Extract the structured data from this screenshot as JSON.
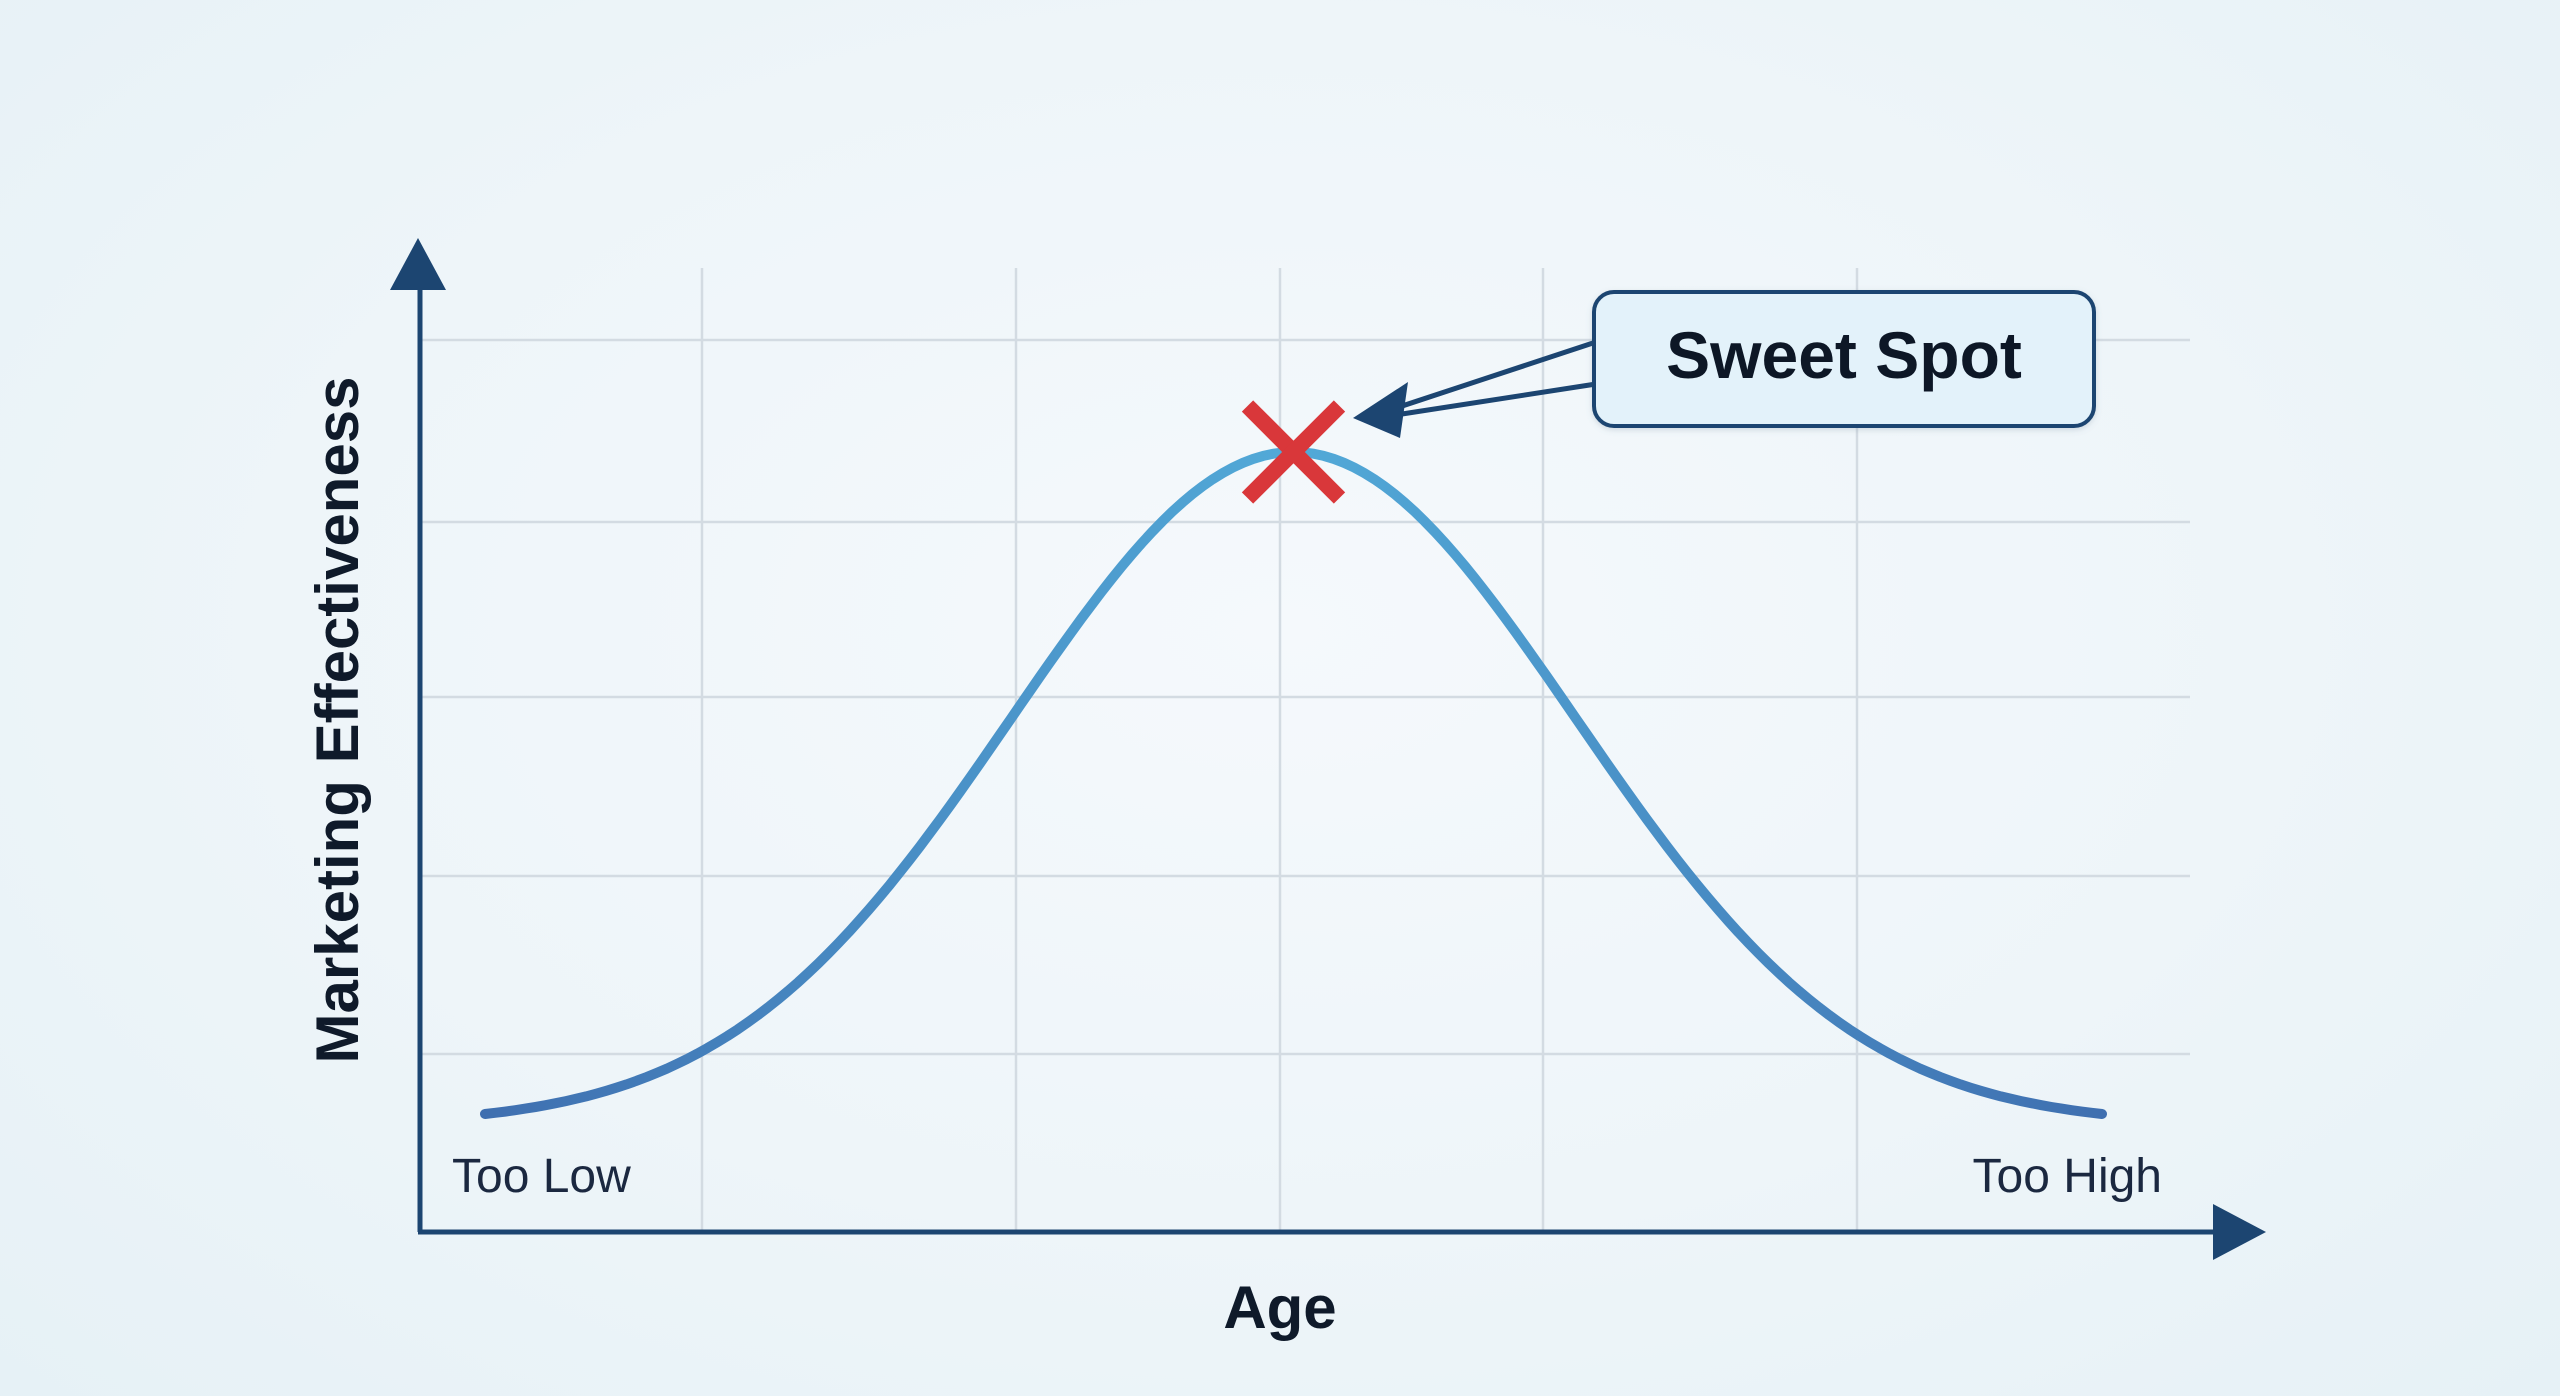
{
  "chart_data": {
    "type": "line",
    "title": "",
    "xlabel": "Age",
    "ylabel": "Marketing Effectiveness",
    "x_tick_labels": [
      "Too Low",
      "Too High"
    ],
    "y_tick_labels": [],
    "grid": true,
    "xlim": [
      0,
      1
    ],
    "ylim": [
      0,
      1
    ],
    "series": [
      {
        "curve": "bell",
        "x": [
          0.04,
          0.25,
          0.5,
          0.75,
          0.96
        ],
        "y": [
          0.14,
          0.42,
          0.85,
          0.42,
          0.14
        ]
      }
    ],
    "annotations": [
      {
        "text": "Sweet Spot",
        "marker": "x",
        "x": 0.5,
        "y": 0.85,
        "marker_color": "#d9373a"
      }
    ],
    "colors": {
      "curve_start": "#3f6fb0",
      "curve_peak": "#52aad8",
      "axis": "#1c4571",
      "grid": "#d3dbe2",
      "callout_fill": "#e3f2fa",
      "callout_border": "#1c4571"
    }
  }
}
